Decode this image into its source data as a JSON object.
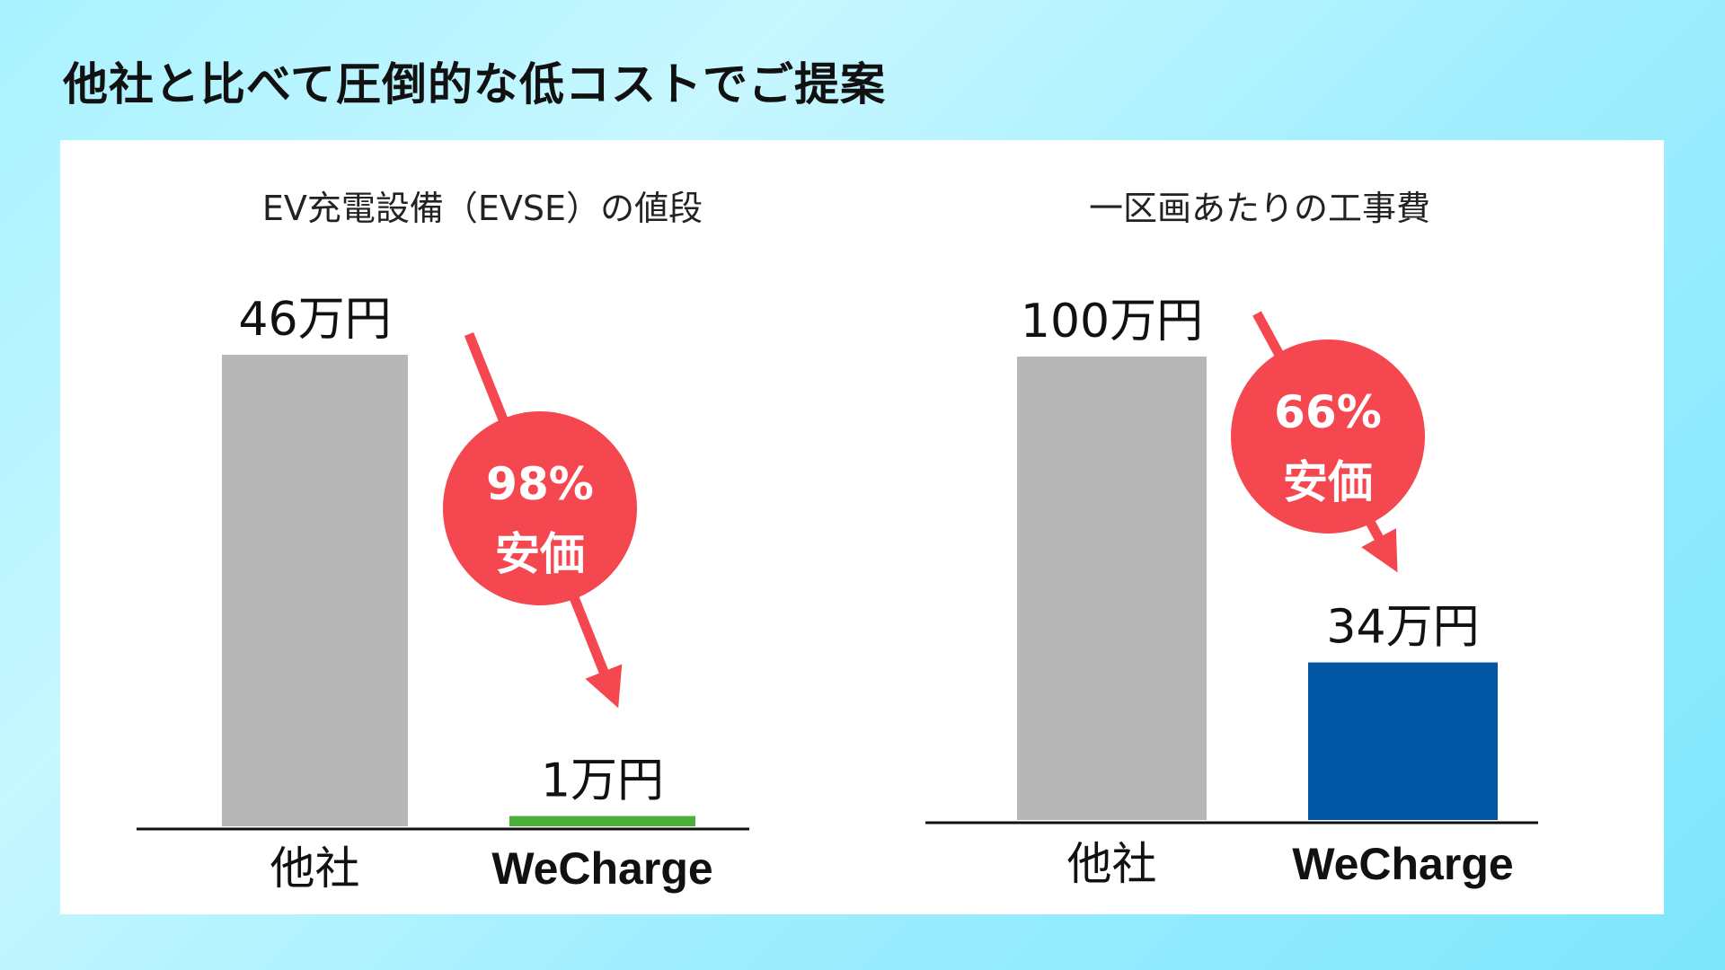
{
  "headline": "他社と比べて圧倒的な低コストでご提案",
  "colors": {
    "competitor_bar": "#b7b7b7",
    "accent_red": "#f5474f",
    "baseline": "#111111"
  },
  "chart_data": [
    {
      "type": "bar",
      "title": "EV充電設備（EVSE）の値段",
      "unit": "万円",
      "categories": [
        "他社",
        "WeCharge"
      ],
      "values": [
        46,
        1
      ],
      "value_labels": [
        "46万円",
        "1万円"
      ],
      "bar_colors": [
        "#b7b7b7",
        "#4caf3a"
      ],
      "ylim": [
        0,
        46
      ],
      "badge": {
        "percent": "98%",
        "text": "安価"
      }
    },
    {
      "type": "bar",
      "title": "一区画あたりの工事費",
      "unit": "万円",
      "categories": [
        "他社",
        "WeCharge"
      ],
      "values": [
        100,
        34
      ],
      "value_labels": [
        "100万円",
        "34万円"
      ],
      "bar_colors": [
        "#b7b7b7",
        "#0055a5"
      ],
      "ylim": [
        0,
        100
      ],
      "badge": {
        "percent": "66%",
        "text": "安価"
      }
    }
  ]
}
